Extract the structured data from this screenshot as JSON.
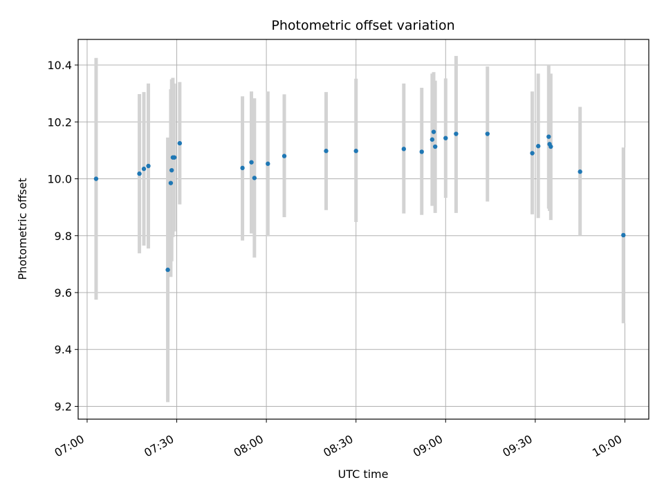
{
  "chart_data": {
    "type": "scatter",
    "title": "Photometric offset variation",
    "xlabel": "UTC time",
    "ylabel": "Photometric offset",
    "xlim": [
      "06:57",
      "10:08"
    ],
    "ylim": [
      9.155,
      10.49
    ],
    "grid": true,
    "x_ticks": [
      "07:00",
      "07:30",
      "08:00",
      "08:30",
      "09:00",
      "09:30",
      "10:00"
    ],
    "y_ticks": [
      9.2,
      9.4,
      9.6,
      9.8,
      10.0,
      10.2,
      10.4
    ],
    "y_tick_labels": [
      "9.2",
      "9.4",
      "9.6",
      "9.8",
      "10.0",
      "10.2",
      "10.4"
    ],
    "colors": {
      "marker": "#1f77b4",
      "errorbar": "#d3d3d3",
      "grid": "#b0b0b0"
    },
    "points": [
      {
        "t": "07:03",
        "y": 10.0,
        "ylo": 9.575,
        "yhi": 10.425
      },
      {
        "t": "07:17.5",
        "y": 10.018,
        "ylo": 9.738,
        "yhi": 10.298
      },
      {
        "t": "07:19",
        "y": 10.035,
        "ylo": 9.765,
        "yhi": 10.305
      },
      {
        "t": "07:20.5",
        "y": 10.045,
        "ylo": 9.755,
        "yhi": 10.335
      },
      {
        "t": "07:27",
        "y": 9.68,
        "ylo": 9.215,
        "yhi": 10.145
      },
      {
        "t": "07:28",
        "y": 9.985,
        "ylo": 9.655,
        "yhi": 10.315
      },
      {
        "t": "07:28.3",
        "y": 10.03,
        "ylo": 9.71,
        "yhi": 10.35
      },
      {
        "t": "07:28.7",
        "y": 10.075,
        "ylo": 9.795,
        "yhi": 10.355
      },
      {
        "t": "07:29.2",
        "y": 10.075,
        "ylo": 9.815,
        "yhi": 10.335
      },
      {
        "t": "07:31",
        "y": 10.125,
        "ylo": 9.91,
        "yhi": 10.34
      },
      {
        "t": "07:52",
        "y": 10.038,
        "ylo": 9.783,
        "yhi": 10.29
      },
      {
        "t": "07:55",
        "y": 10.058,
        "ylo": 9.808,
        "yhi": 10.307
      },
      {
        "t": "07:56",
        "y": 10.003,
        "ylo": 9.723,
        "yhi": 10.283
      },
      {
        "t": "08:00.5",
        "y": 10.053,
        "ylo": 9.798,
        "yhi": 10.307
      },
      {
        "t": "08:06",
        "y": 10.08,
        "ylo": 9.865,
        "yhi": 10.297
      },
      {
        "t": "08:20",
        "y": 10.098,
        "ylo": 9.89,
        "yhi": 10.305
      },
      {
        "t": "08:30",
        "y": 10.098,
        "ylo": 9.848,
        "yhi": 10.352
      },
      {
        "t": "08:46",
        "y": 10.105,
        "ylo": 9.878,
        "yhi": 10.335
      },
      {
        "t": "08:52",
        "y": 10.095,
        "ylo": 9.873,
        "yhi": 10.32
      },
      {
        "t": "08:55.5",
        "y": 10.138,
        "ylo": 9.905,
        "yhi": 10.37
      },
      {
        "t": "08:56",
        "y": 10.165,
        "ylo": 9.955,
        "yhi": 10.375
      },
      {
        "t": "08:56.5",
        "y": 10.113,
        "ylo": 9.88,
        "yhi": 10.345
      },
      {
        "t": "09:00",
        "y": 10.143,
        "ylo": 9.933,
        "yhi": 10.353
      },
      {
        "t": "09:03.5",
        "y": 10.158,
        "ylo": 9.88,
        "yhi": 10.432
      },
      {
        "t": "09:14",
        "y": 10.158,
        "ylo": 9.92,
        "yhi": 10.395
      },
      {
        "t": "09:29",
        "y": 10.09,
        "ylo": 9.875,
        "yhi": 10.307
      },
      {
        "t": "09:31",
        "y": 10.115,
        "ylo": 9.862,
        "yhi": 10.37
      },
      {
        "t": "09:34.5",
        "y": 10.148,
        "ylo": 9.895,
        "yhi": 10.4
      },
      {
        "t": "09:34.8",
        "y": 10.122,
        "ylo": 9.887,
        "yhi": 10.357
      },
      {
        "t": "09:35.2",
        "y": 10.113,
        "ylo": 9.855,
        "yhi": 10.37
      },
      {
        "t": "09:45",
        "y": 10.025,
        "ylo": 9.8,
        "yhi": 10.253
      },
      {
        "t": "09:59.5",
        "y": 9.802,
        "ylo": 9.492,
        "yhi": 10.11
      }
    ]
  }
}
